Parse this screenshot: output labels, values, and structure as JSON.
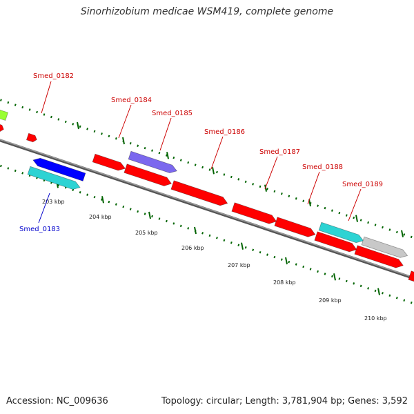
{
  "map": {
    "title": "Sinorhizobium medicae WSM419, complete genome",
    "accession": "Accession: NC_009636",
    "summary": "Topology: circular; Length: 3,781,904 bp; Genes: 3,592"
  },
  "colors": {
    "cds_forward": "#ff0000",
    "cds_reverse": "#0000ff",
    "cds_cyan": "#2dd3d3",
    "cds_purple": "#7b68ee",
    "cds_gray": "#c8c8c8",
    "cds_green": "#99ff33",
    "gene_label_forward": "#cc0000",
    "gene_label_reverse": "#0000cc",
    "tick_green": "#006400",
    "backbone": "#888888"
  },
  "ticks": [
    {
      "kbp": 203,
      "label": "203 kbp"
    },
    {
      "kbp": 204,
      "label": "204 kbp"
    },
    {
      "kbp": 205,
      "label": "205 kbp"
    },
    {
      "kbp": 206,
      "label": "206 kbp"
    },
    {
      "kbp": 207,
      "label": "207 kbp"
    },
    {
      "kbp": 208,
      "label": "208 kbp"
    },
    {
      "kbp": 209,
      "label": "209 kbp"
    },
    {
      "kbp": 210,
      "label": "210 kbp"
    }
  ],
  "gene_labels": [
    {
      "text": "Smed_0182",
      "strand": "forward"
    },
    {
      "text": "Smed_0183",
      "strand": "reverse"
    },
    {
      "text": "Smed_0184",
      "strand": "forward"
    },
    {
      "text": "Smed_0185",
      "strand": "forward"
    },
    {
      "text": "Smed_0186",
      "strand": "forward"
    },
    {
      "text": "Smed_0187",
      "strand": "forward"
    },
    {
      "text": "Smed_0188",
      "strand": "forward"
    },
    {
      "text": "Smed_0189",
      "strand": "forward"
    }
  ]
}
